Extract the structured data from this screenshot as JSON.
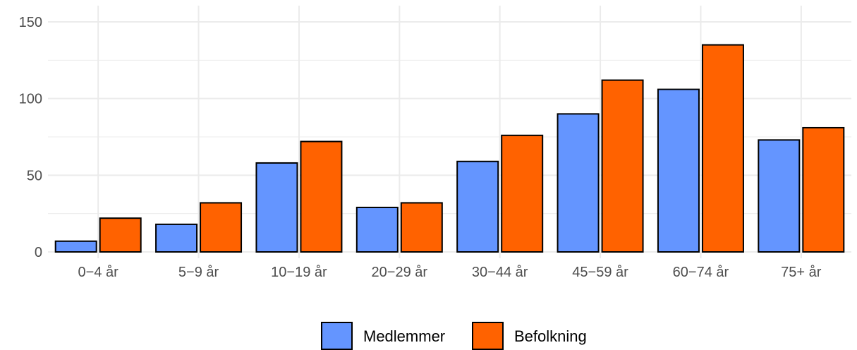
{
  "chart_data": {
    "type": "bar",
    "categories": [
      "0−4 år",
      "5−9 år",
      "10−19 år",
      "20−29 år",
      "30−44 år",
      "45−59 år",
      "60−74 år",
      "75+ år"
    ],
    "series": [
      {
        "name": "Medlemmer",
        "color": "#6495ff",
        "values": [
          7,
          18,
          58,
          29,
          59,
          90,
          106,
          73
        ]
      },
      {
        "name": "Befolkning",
        "color": "#ff6200",
        "values": [
          22,
          32,
          72,
          32,
          76,
          112,
          135,
          81
        ]
      }
    ],
    "yticks": [
      0,
      50,
      100,
      150
    ],
    "ylim": [
      0,
      150
    ],
    "grid": true,
    "legend_position": "bottom"
  }
}
